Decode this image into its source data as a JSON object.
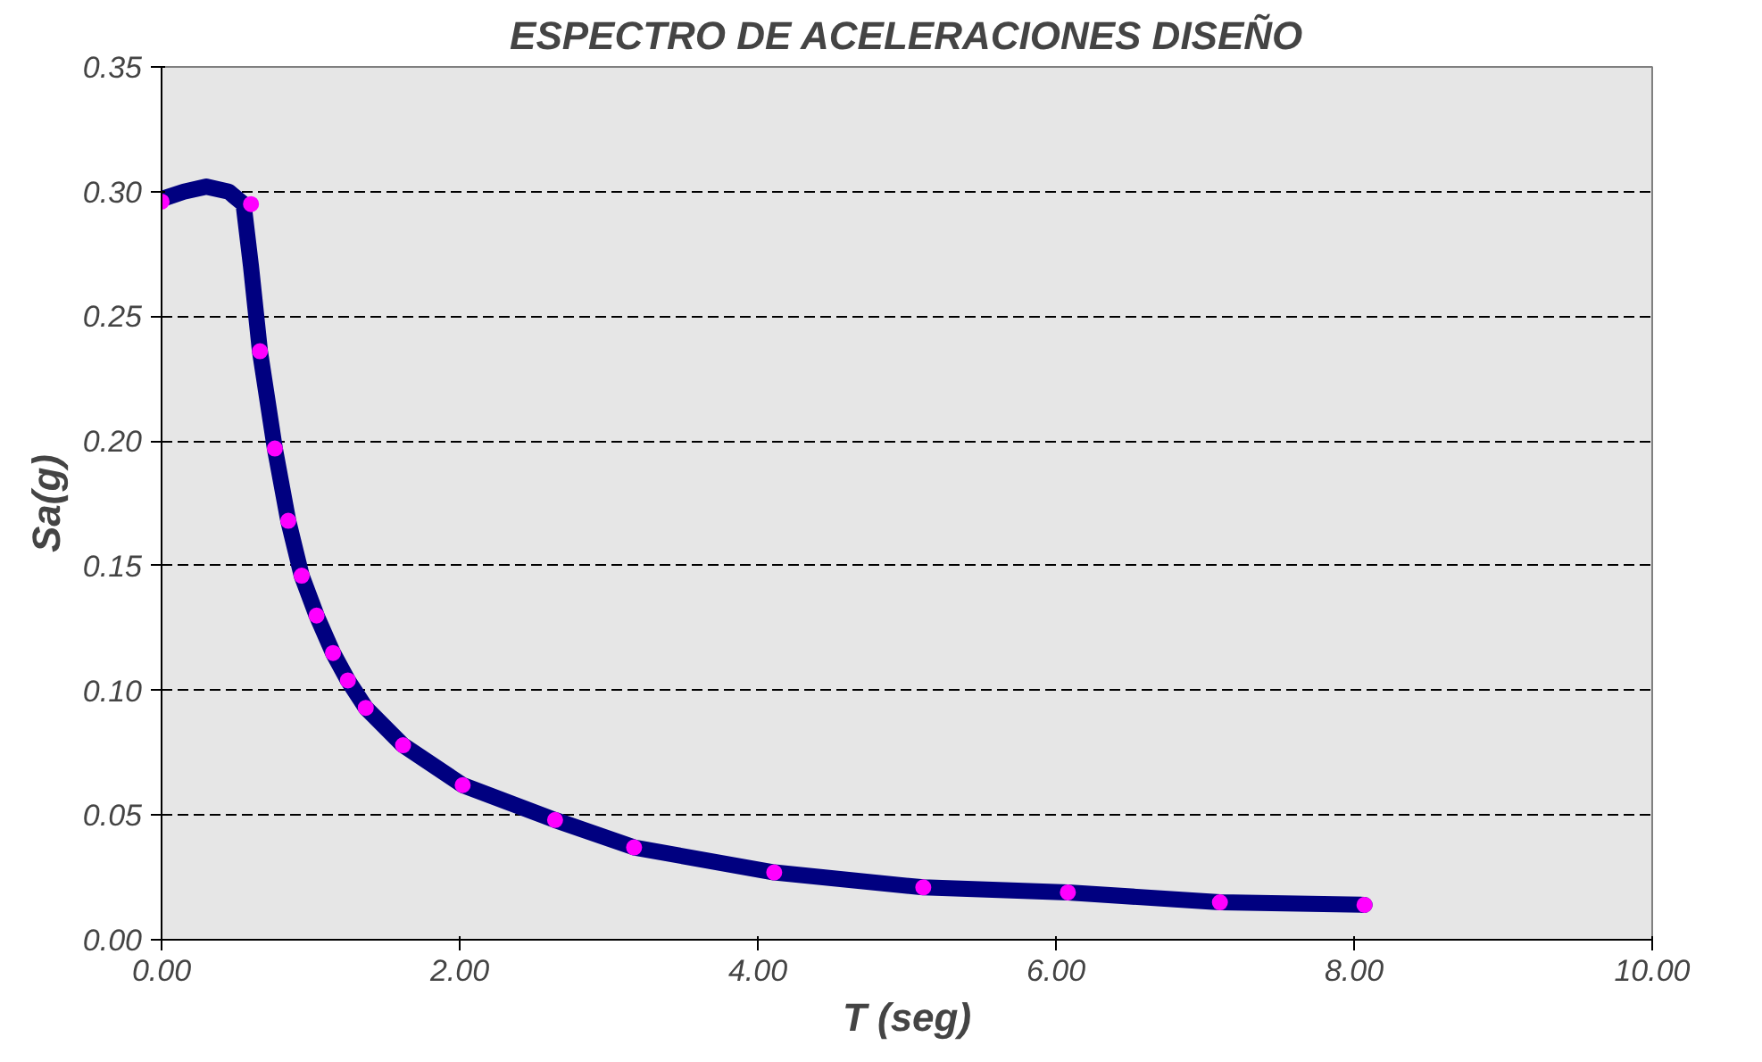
{
  "chart_data": {
    "type": "line",
    "title": "ESPECTRO DE ACELERACIONES DISEÑO",
    "xlabel": "T (seg)",
    "ylabel": "Sa(g)",
    "xlim": [
      0,
      10
    ],
    "ylim": [
      0,
      0.35
    ],
    "xticks": [
      {
        "value": 0,
        "label": "0.00"
      },
      {
        "value": 2,
        "label": "2.00"
      },
      {
        "value": 4,
        "label": "4.00"
      },
      {
        "value": 6,
        "label": "6.00"
      },
      {
        "value": 8,
        "label": "8.00"
      },
      {
        "value": 10,
        "label": "10.00"
      }
    ],
    "yticks": [
      {
        "value": 0,
        "label": "0.00"
      },
      {
        "value": 0.05,
        "label": "0.05"
      },
      {
        "value": 0.1,
        "label": "0.10"
      },
      {
        "value": 0.15,
        "label": "0.15"
      },
      {
        "value": 0.2,
        "label": "0.20"
      },
      {
        "value": 0.25,
        "label": "0.25"
      },
      {
        "value": 0.3,
        "label": "0.30"
      },
      {
        "value": 0.35,
        "label": "0.35"
      }
    ],
    "grid": "y",
    "series": [
      {
        "color": "#000080",
        "line_style": "solid",
        "marker": "none",
        "x": [
          0,
          0.15,
          0.3,
          0.45,
          0.55,
          0.6,
          0.66,
          0.76,
          0.85,
          0.94,
          1.04,
          1.15,
          1.25,
          1.37,
          1.62,
          2.02,
          2.64,
          3.17,
          4.11,
          5.11,
          6.08,
          7.1,
          8.07
        ],
        "values": [
          0.297,
          0.3,
          0.302,
          0.3,
          0.295,
          0.27,
          0.236,
          0.197,
          0.168,
          0.146,
          0.13,
          0.115,
          0.104,
          0.093,
          0.078,
          0.062,
          0.048,
          0.037,
          0.027,
          0.021,
          0.019,
          0.015,
          0.014
        ]
      },
      {
        "type": "scatter",
        "color": "#ff00ff",
        "marker": "circle",
        "x": [
          0,
          0.6,
          0.66,
          0.76,
          0.85,
          0.94,
          1.04,
          1.15,
          1.25,
          1.37,
          1.62,
          2.02,
          2.64,
          3.17,
          4.11,
          5.11,
          6.08,
          7.1,
          8.07
        ],
        "values": [
          0.296,
          0.295,
          0.236,
          0.197,
          0.168,
          0.146,
          0.13,
          0.115,
          0.104,
          0.093,
          0.078,
          0.062,
          0.048,
          0.037,
          0.027,
          0.021,
          0.019,
          0.015,
          0.014
        ]
      }
    ]
  }
}
